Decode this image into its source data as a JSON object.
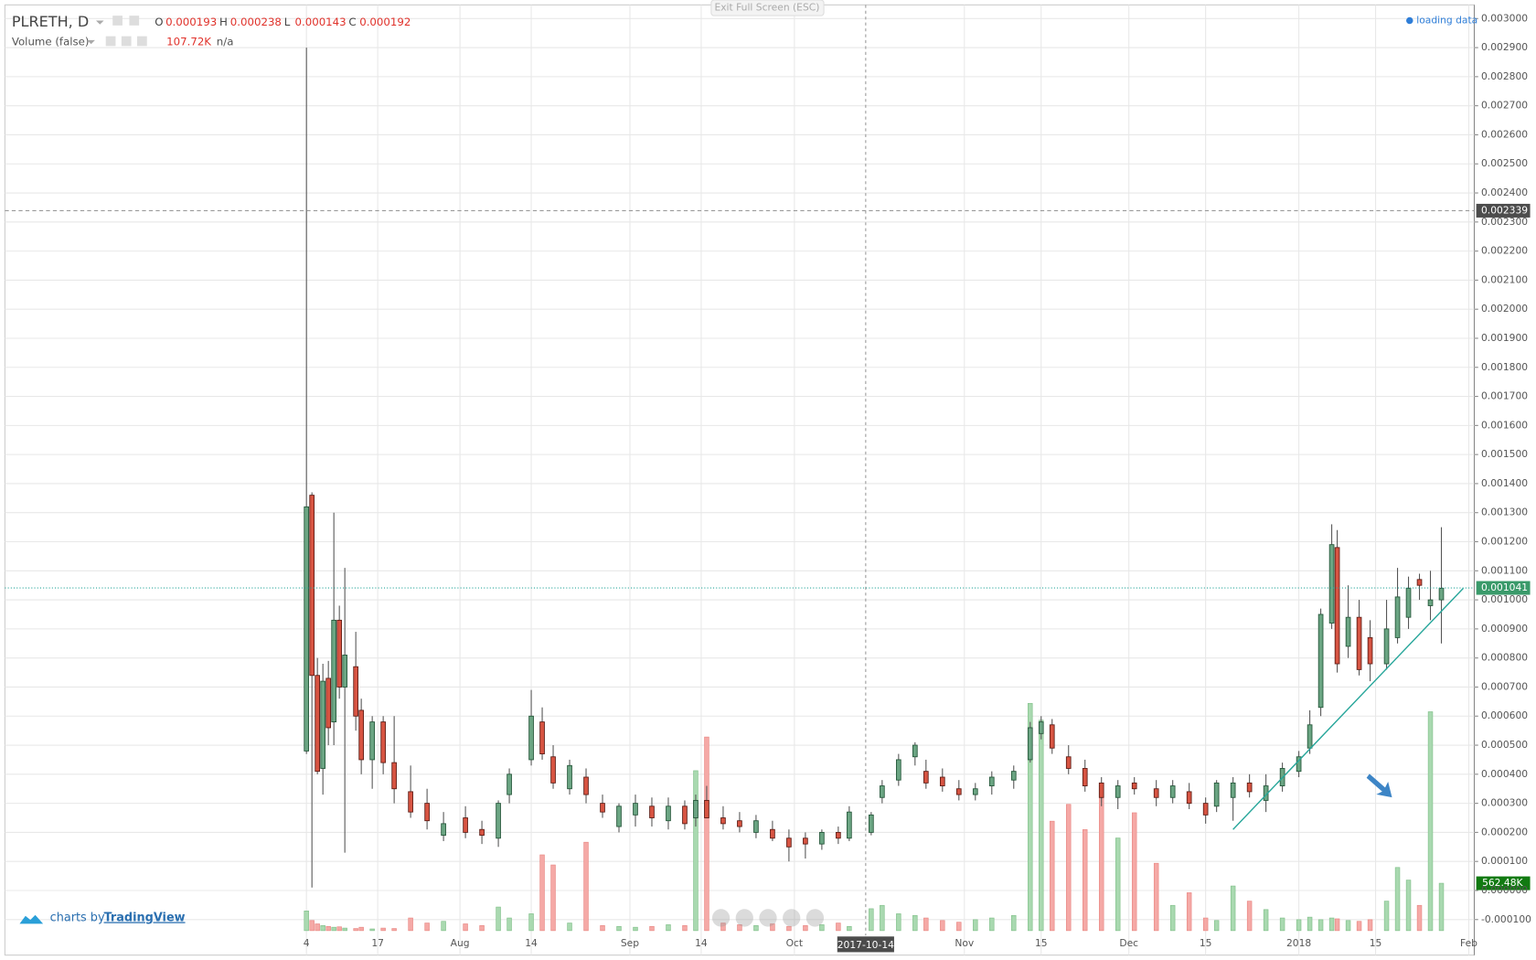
{
  "chart_data": {
    "type": "candlestick",
    "title": "PLRETH, D",
    "ohlc_legend": [
      {
        "label": "O",
        "value": 0.000193
      },
      {
        "label": "H",
        "value": 0.000238
      },
      {
        "label": "L",
        "value": 0.000143
      },
      {
        "label": "C",
        "value": 0.000192
      }
    ],
    "volume_title": "Volume (false)",
    "volume_value": "107.72K",
    "volume_extra": "n/a",
    "loading": "loading data",
    "fullscreen_button": "Exit Full Screen (ESC)",
    "branding": {
      "prefix": "charts by",
      "name": "TradingView"
    },
    "up_color": "#6ba583",
    "down_color": "#d75442",
    "up_volume_color": "#a9d9b0",
    "down_volume_color": "#f5a9a6",
    "grid": true,
    "xlim": [
      "2017-05-10",
      "2018-02-02"
    ],
    "xticks": [
      {
        "value": "2017-07-04",
        "label": "4"
      },
      {
        "value": "2017-07-17",
        "label": "17"
      },
      {
        "value": "2017-08-01",
        "label": "Aug"
      },
      {
        "value": "2017-08-14",
        "label": "14"
      },
      {
        "value": "2017-09-01",
        "label": "Sep"
      },
      {
        "value": "2017-09-14",
        "label": "14"
      },
      {
        "value": "2017-10-01",
        "label": "Oct"
      },
      {
        "value": "2017-11-01",
        "label": "Nov"
      },
      {
        "value": "2017-11-15",
        "label": "15"
      },
      {
        "value": "2017-12-01",
        "label": "Dec"
      },
      {
        "value": "2017-12-15",
        "label": "15"
      },
      {
        "value": "2018-01-01",
        "label": "2018"
      },
      {
        "value": "2018-01-15",
        "label": "15"
      },
      {
        "value": "2018-02-01",
        "label": "Feb"
      }
    ],
    "ylim": [
      -0.000138,
      0.003047
    ],
    "yticks": [
      {
        "value": -0.0001,
        "label": "-0.000100"
      },
      {
        "value": 0,
        "label": "0.000000"
      },
      {
        "value": 0.0001,
        "label": "0.000100"
      },
      {
        "value": 0.0002,
        "label": "0.000200"
      },
      {
        "value": 0.0003,
        "label": "0.000300"
      },
      {
        "value": 0.0004,
        "label": "0.000400"
      },
      {
        "value": 0.0005,
        "label": "0.000500"
      },
      {
        "value": 0.0006,
        "label": "0.000600"
      },
      {
        "value": 0.0007,
        "label": "0.000700"
      },
      {
        "value": 0.0008,
        "label": "0.000800"
      },
      {
        "value": 0.0009,
        "label": "0.000900"
      },
      {
        "value": 0.001,
        "label": "0.001000"
      },
      {
        "value": 0.0011,
        "label": "0.001100"
      },
      {
        "value": 0.0012,
        "label": "0.001200"
      },
      {
        "value": 0.0013,
        "label": "0.001300"
      },
      {
        "value": 0.0014,
        "label": "0.001400"
      },
      {
        "value": 0.0015,
        "label": "0.001500"
      },
      {
        "value": 0.0016,
        "label": "0.001600"
      },
      {
        "value": 0.0017,
        "label": "0.001700"
      },
      {
        "value": 0.0018,
        "label": "0.001800"
      },
      {
        "value": 0.0019,
        "label": "0.001900"
      },
      {
        "value": 0.002,
        "label": "0.002000"
      },
      {
        "value": 0.0021,
        "label": "0.002100"
      },
      {
        "value": 0.0022,
        "label": "0.002200"
      },
      {
        "value": 0.0023,
        "label": "0.002300"
      },
      {
        "value": 0.0024,
        "label": "0.002400"
      },
      {
        "value": 0.0025,
        "label": "0.002500"
      },
      {
        "value": 0.0026,
        "label": "0.002600"
      },
      {
        "value": 0.0027,
        "label": "0.002700"
      },
      {
        "value": 0.0028,
        "label": "0.002800"
      },
      {
        "value": 0.0029,
        "label": "0.002900"
      },
      {
        "value": 0.003,
        "label": "0.003000"
      }
    ],
    "crosshair": {
      "date": "2017-10-14",
      "price": 0.002339
    },
    "last_price": 0.001041,
    "last_volume": {
      "value": 562.48,
      "label": "562.48K"
    },
    "trendline": {
      "x": [
        "2017-12-20",
        "2018-01-31"
      ],
      "y": [
        0.00021,
        0.00104
      ]
    },
    "candles": [
      {
        "date": "2017-07-04",
        "open": 0.00048,
        "high": 0.0029,
        "low": 0.00047,
        "close": 0.00132,
        "volume": 234
      },
      {
        "date": "2017-07-05",
        "open": 0.00136,
        "high": 0.00137,
        "low": 1e-05,
        "close": 0.00074,
        "volume": 120
      },
      {
        "date": "2017-07-06",
        "open": 0.00074,
        "high": 0.0008,
        "low": 0.0004,
        "close": 0.00041,
        "volume": 80
      },
      {
        "date": "2017-07-07",
        "open": 0.00042,
        "high": 0.00078,
        "low": 0.00033,
        "close": 0.00072,
        "volume": 60
      },
      {
        "date": "2017-07-08",
        "open": 0.00073,
        "high": 0.00079,
        "low": 0.0005,
        "close": 0.00056,
        "volume": 50
      },
      {
        "date": "2017-07-09",
        "open": 0.00058,
        "high": 0.0013,
        "low": 0.0005,
        "close": 0.00093,
        "volume": 40
      },
      {
        "date": "2017-07-10",
        "open": 0.00093,
        "high": 0.00098,
        "low": 0.00066,
        "close": 0.0007,
        "volume": 45
      },
      {
        "date": "2017-07-11",
        "open": 0.0007,
        "high": 0.00111,
        "low": 0.00013,
        "close": 0.00081,
        "volume": 30
      },
      {
        "date": "2017-07-13",
        "open": 0.00077,
        "high": 0.00089,
        "low": 0.00055,
        "close": 0.0006,
        "volume": 25
      },
      {
        "date": "2017-07-14",
        "open": 0.00062,
        "high": 0.00066,
        "low": 0.0004,
        "close": 0.00045,
        "volume": 40
      },
      {
        "date": "2017-07-16",
        "open": 0.00045,
        "high": 0.0006,
        "low": 0.00035,
        "close": 0.00058,
        "volume": 20
      },
      {
        "date": "2017-07-18",
        "open": 0.00058,
        "high": 0.0006,
        "low": 0.0004,
        "close": 0.00044,
        "volume": 30
      },
      {
        "date": "2017-07-20",
        "open": 0.00044,
        "high": 0.0006,
        "low": 0.0003,
        "close": 0.00035,
        "volume": 25
      },
      {
        "date": "2017-07-23",
        "open": 0.00034,
        "high": 0.00043,
        "low": 0.00025,
        "close": 0.00027,
        "volume": 150
      },
      {
        "date": "2017-07-26",
        "open": 0.0003,
        "high": 0.00035,
        "low": 0.00021,
        "close": 0.00024,
        "volume": 90
      },
      {
        "date": "2017-07-29",
        "open": 0.00019,
        "high": 0.00027,
        "low": 0.00017,
        "close": 0.00023,
        "volume": 110
      },
      {
        "date": "2017-08-02",
        "open": 0.00025,
        "high": 0.00029,
        "low": 0.00018,
        "close": 0.0002,
        "volume": 80
      },
      {
        "date": "2017-08-05",
        "open": 0.00021,
        "high": 0.00024,
        "low": 0.00016,
        "close": 0.00019,
        "volume": 60
      },
      {
        "date": "2017-08-08",
        "open": 0.00018,
        "high": 0.00031,
        "low": 0.00015,
        "close": 0.0003,
        "volume": 280
      },
      {
        "date": "2017-08-10",
        "open": 0.00033,
        "high": 0.00042,
        "low": 0.0003,
        "close": 0.0004,
        "volume": 150
      },
      {
        "date": "2017-08-14",
        "open": 0.00045,
        "high": 0.00069,
        "low": 0.00043,
        "close": 0.0006,
        "volume": 200
      },
      {
        "date": "2017-08-16",
        "open": 0.00058,
        "high": 0.00063,
        "low": 0.00045,
        "close": 0.00047,
        "volume": 900
      },
      {
        "date": "2017-08-18",
        "open": 0.00046,
        "high": 0.0005,
        "low": 0.00035,
        "close": 0.00037,
        "volume": 780
      },
      {
        "date": "2017-08-21",
        "open": 0.00035,
        "high": 0.00045,
        "low": 0.00033,
        "close": 0.00043,
        "volume": 90
      },
      {
        "date": "2017-08-24",
        "open": 0.00039,
        "high": 0.00042,
        "low": 0.0003,
        "close": 0.00033,
        "volume": 1050
      },
      {
        "date": "2017-08-27",
        "open": 0.0003,
        "high": 0.00033,
        "low": 0.00025,
        "close": 0.00027,
        "volume": 60
      },
      {
        "date": "2017-08-30",
        "open": 0.00022,
        "high": 0.0003,
        "low": 0.0002,
        "close": 0.00029,
        "volume": 50
      },
      {
        "date": "2017-09-02",
        "open": 0.00026,
        "high": 0.00033,
        "low": 0.00022,
        "close": 0.0003,
        "volume": 40
      },
      {
        "date": "2017-09-05",
        "open": 0.00029,
        "high": 0.00032,
        "low": 0.00022,
        "close": 0.00025,
        "volume": 50
      },
      {
        "date": "2017-09-08",
        "open": 0.00024,
        "high": 0.00032,
        "low": 0.00021,
        "close": 0.00029,
        "volume": 70
      },
      {
        "date": "2017-09-11",
        "open": 0.00029,
        "high": 0.00031,
        "low": 0.00021,
        "close": 0.00023,
        "volume": 60
      },
      {
        "date": "2017-09-13",
        "open": 0.00025,
        "high": 0.00033,
        "low": 0.00022,
        "close": 0.00031,
        "volume": 1900
      },
      {
        "date": "2017-09-15",
        "open": 0.00031,
        "high": 0.00036,
        "low": 0.00025,
        "close": 0.00025,
        "volume": 2300
      },
      {
        "date": "2017-09-18",
        "open": 0.00025,
        "high": 0.00029,
        "low": 0.00021,
        "close": 0.00023,
        "volume": 90
      },
      {
        "date": "2017-09-21",
        "open": 0.00024,
        "high": 0.00027,
        "low": 0.0002,
        "close": 0.00022,
        "volume": 70
      },
      {
        "date": "2017-09-24",
        "open": 0.0002,
        "high": 0.00026,
        "low": 0.00018,
        "close": 0.00024,
        "volume": 60
      },
      {
        "date": "2017-09-27",
        "open": 0.00021,
        "high": 0.00024,
        "low": 0.00017,
        "close": 0.00018,
        "volume": 80
      },
      {
        "date": "2017-09-30",
        "open": 0.00018,
        "high": 0.00021,
        "low": 0.0001,
        "close": 0.00015,
        "volume": 50
      },
      {
        "date": "2017-10-03",
        "open": 0.00018,
        "high": 0.0002,
        "low": 0.00011,
        "close": 0.00016,
        "volume": 60
      },
      {
        "date": "2017-10-06",
        "open": 0.00016,
        "high": 0.00021,
        "low": 0.00014,
        "close": 0.0002,
        "volume": 70
      },
      {
        "date": "2017-10-09",
        "open": 0.0002,
        "high": 0.00022,
        "low": 0.00016,
        "close": 0.00018,
        "volume": 90
      },
      {
        "date": "2017-10-11",
        "open": 0.00018,
        "high": 0.00029,
        "low": 0.00017,
        "close": 0.00027,
        "volume": 50
      },
      {
        "date": "2017-10-15",
        "open": 0.0002,
        "high": 0.00027,
        "low": 0.00019,
        "close": 0.00026,
        "volume": 260
      },
      {
        "date": "2017-10-17",
        "open": 0.00032,
        "high": 0.00038,
        "low": 0.0003,
        "close": 0.00036,
        "volume": 300
      },
      {
        "date": "2017-10-20",
        "open": 0.00038,
        "high": 0.00047,
        "low": 0.00036,
        "close": 0.00045,
        "volume": 200
      },
      {
        "date": "2017-10-23",
        "open": 0.00046,
        "high": 0.00051,
        "low": 0.00043,
        "close": 0.0005,
        "volume": 180
      },
      {
        "date": "2017-10-25",
        "open": 0.00041,
        "high": 0.00045,
        "low": 0.00035,
        "close": 0.00037,
        "volume": 150
      },
      {
        "date": "2017-10-28",
        "open": 0.00039,
        "high": 0.00042,
        "low": 0.00034,
        "close": 0.00036,
        "volume": 120
      },
      {
        "date": "2017-10-31",
        "open": 0.00035,
        "high": 0.00038,
        "low": 0.00031,
        "close": 0.00033,
        "volume": 100
      },
      {
        "date": "2017-11-03",
        "open": 0.00033,
        "high": 0.00037,
        "low": 0.00031,
        "close": 0.00035,
        "volume": 130
      },
      {
        "date": "2017-11-06",
        "open": 0.00036,
        "high": 0.00041,
        "low": 0.00033,
        "close": 0.00039,
        "volume": 150
      },
      {
        "date": "2017-11-10",
        "open": 0.00038,
        "high": 0.00043,
        "low": 0.00035,
        "close": 0.00041,
        "volume": 180
      },
      {
        "date": "2017-11-13",
        "open": 0.00045,
        "high": 0.00058,
        "low": 0.00044,
        "close": 0.00056,
        "volume": 2700
      },
      {
        "date": "2017-11-15",
        "open": 0.00054,
        "high": 0.0006,
        "low": 0.00052,
        "close": 0.00058,
        "volume": 2500
      },
      {
        "date": "2017-11-17",
        "open": 0.00057,
        "high": 0.00059,
        "low": 0.00047,
        "close": 0.00049,
        "volume": 1300
      },
      {
        "date": "2017-11-20",
        "open": 0.00046,
        "high": 0.0005,
        "low": 0.0004,
        "close": 0.00042,
        "volume": 1500
      },
      {
        "date": "2017-11-23",
        "open": 0.00042,
        "high": 0.00045,
        "low": 0.00034,
        "close": 0.00036,
        "volume": 1200
      },
      {
        "date": "2017-11-26",
        "open": 0.00037,
        "high": 0.00039,
        "low": 0.00029,
        "close": 0.00032,
        "volume": 1600
      },
      {
        "date": "2017-11-29",
        "open": 0.00032,
        "high": 0.00038,
        "low": 0.00028,
        "close": 0.00036,
        "volume": 1100
      },
      {
        "date": "2017-12-02",
        "open": 0.00037,
        "high": 0.00039,
        "low": 0.00033,
        "close": 0.00035,
        "volume": 1400
      },
      {
        "date": "2017-12-06",
        "open": 0.00035,
        "high": 0.00038,
        "low": 0.00029,
        "close": 0.00032,
        "volume": 800
      },
      {
        "date": "2017-12-09",
        "open": 0.00032,
        "high": 0.00038,
        "low": 0.0003,
        "close": 0.00036,
        "volume": 300
      },
      {
        "date": "2017-12-12",
        "open": 0.00034,
        "high": 0.00037,
        "low": 0.00028,
        "close": 0.0003,
        "volume": 450
      },
      {
        "date": "2017-12-15",
        "open": 0.0003,
        "high": 0.00032,
        "low": 0.00023,
        "close": 0.00026,
        "volume": 150
      },
      {
        "date": "2017-12-17",
        "open": 0.00029,
        "high": 0.00038,
        "low": 0.00027,
        "close": 0.00037,
        "volume": 120
      },
      {
        "date": "2017-12-20",
        "open": 0.00032,
        "high": 0.00039,
        "low": 0.00024,
        "close": 0.00037,
        "volume": 530
      },
      {
        "date": "2017-12-23",
        "open": 0.00037,
        "high": 0.0004,
        "low": 0.00032,
        "close": 0.00034,
        "volume": 350
      },
      {
        "date": "2017-12-26",
        "open": 0.00031,
        "high": 0.0004,
        "low": 0.00027,
        "close": 0.00036,
        "volume": 250
      },
      {
        "date": "2017-12-29",
        "open": 0.00036,
        "high": 0.00044,
        "low": 0.00034,
        "close": 0.00042,
        "volume": 150
      },
      {
        "date": "2018-01-01",
        "open": 0.00041,
        "high": 0.00048,
        "low": 0.00039,
        "close": 0.00046,
        "volume": 130
      },
      {
        "date": "2018-01-03",
        "open": 0.00049,
        "high": 0.00062,
        "low": 0.00047,
        "close": 0.00057,
        "volume": 160
      },
      {
        "date": "2018-01-05",
        "open": 0.00063,
        "high": 0.00097,
        "low": 0.0006,
        "close": 0.00095,
        "volume": 130
      },
      {
        "date": "2018-01-07",
        "open": 0.00092,
        "high": 0.00126,
        "low": 0.0009,
        "close": 0.00119,
        "volume": 150
      },
      {
        "date": "2018-01-08",
        "open": 0.00118,
        "high": 0.00124,
        "low": 0.00075,
        "close": 0.00078,
        "volume": 140
      },
      {
        "date": "2018-01-10",
        "open": 0.00084,
        "high": 0.00105,
        "low": 0.0008,
        "close": 0.00094,
        "volume": 120
      },
      {
        "date": "2018-01-12",
        "open": 0.00094,
        "high": 0.001,
        "low": 0.00074,
        "close": 0.00076,
        "volume": 110
      },
      {
        "date": "2018-01-14",
        "open": 0.00087,
        "high": 0.00093,
        "low": 0.00072,
        "close": 0.00078,
        "volume": 130
      },
      {
        "date": "2018-01-17",
        "open": 0.00078,
        "high": 0.001,
        "low": 0.00076,
        "close": 0.0009,
        "volume": 350
      },
      {
        "date": "2018-01-19",
        "open": 0.00087,
        "high": 0.00111,
        "low": 0.00085,
        "close": 0.00101,
        "volume": 750
      },
      {
        "date": "2018-01-21",
        "open": 0.00094,
        "high": 0.00108,
        "low": 0.0009,
        "close": 0.00104,
        "volume": 600
      },
      {
        "date": "2018-01-23",
        "open": 0.00107,
        "high": 0.00109,
        "low": 0.001,
        "close": 0.00105,
        "volume": 300
      },
      {
        "date": "2018-01-25",
        "open": 0.00098,
        "high": 0.0011,
        "low": 0.00093,
        "close": 0.001,
        "volume": 2600
      },
      {
        "date": "2018-01-27",
        "open": 0.001,
        "high": 0.00125,
        "low": 0.00085,
        "close": 0.00104,
        "volume": 562.48
      }
    ]
  }
}
